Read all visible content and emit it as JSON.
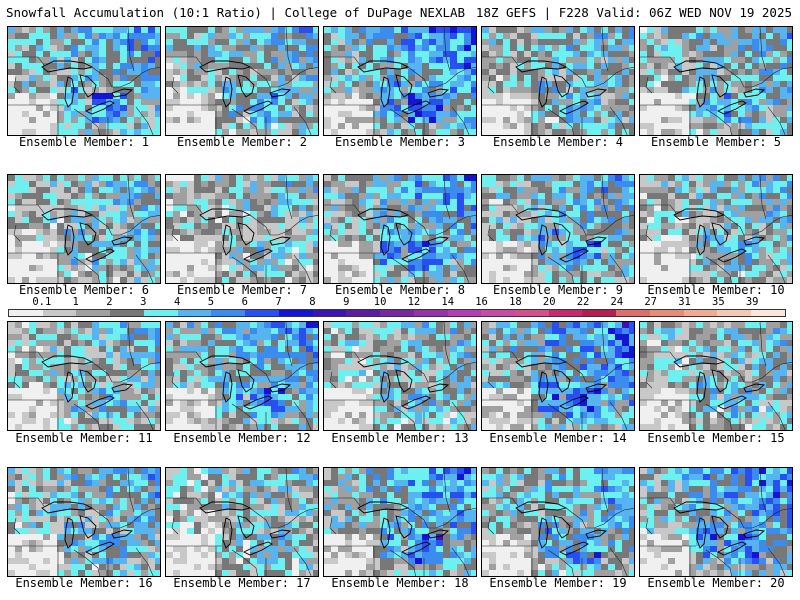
{
  "header": {
    "title_left": "Snowfall Accumulation (10:1 Ratio) | College of DuPage NEXLAB",
    "title_right": "18Z GEFS | F228 Valid: 06Z WED NOV 19 2025"
  },
  "members": [
    {
      "label": "Ensemble Member: 1",
      "intensity": 0.55,
      "seed": 11
    },
    {
      "label": "Ensemble Member: 2",
      "intensity": 0.45,
      "seed": 23
    },
    {
      "label": "Ensemble Member: 3",
      "intensity": 0.7,
      "seed": 37
    },
    {
      "label": "Ensemble Member: 4",
      "intensity": 0.4,
      "seed": 41
    },
    {
      "label": "Ensemble Member: 5",
      "intensity": 0.45,
      "seed": 53
    },
    {
      "label": "Ensemble Member: 6",
      "intensity": 0.4,
      "seed": 67
    },
    {
      "label": "Ensemble Member: 7",
      "intensity": 0.3,
      "seed": 71
    },
    {
      "label": "Ensemble Member: 8",
      "intensity": 0.6,
      "seed": 83
    },
    {
      "label": "Ensemble Member: 9",
      "intensity": 0.5,
      "seed": 97
    },
    {
      "label": "Ensemble Member: 10",
      "intensity": 0.4,
      "seed": 101
    },
    {
      "label": "Ensemble Member: 11",
      "intensity": 0.35,
      "seed": 113
    },
    {
      "label": "Ensemble Member: 12",
      "intensity": 0.6,
      "seed": 127
    },
    {
      "label": "Ensemble Member: 13",
      "intensity": 0.35,
      "seed": 131
    },
    {
      "label": "Ensemble Member: 14",
      "intensity": 0.7,
      "seed": 149
    },
    {
      "label": "Ensemble Member: 15",
      "intensity": 0.35,
      "seed": 151
    },
    {
      "label": "Ensemble Member: 16",
      "intensity": 0.45,
      "seed": 163
    },
    {
      "label": "Ensemble Member: 17",
      "intensity": 0.3,
      "seed": 173
    },
    {
      "label": "Ensemble Member: 18",
      "intensity": 0.65,
      "seed": 181
    },
    {
      "label": "Ensemble Member: 19",
      "intensity": 0.55,
      "seed": 191
    },
    {
      "label": "Ensemble Member: 20",
      "intensity": 0.65,
      "seed": 199
    }
  ],
  "colorbar": {
    "labels": [
      "0.1",
      "1",
      "2",
      "3",
      "4",
      "5",
      "6",
      "7",
      "8",
      "9",
      "10",
      "12",
      "14",
      "16",
      "18",
      "20",
      "22",
      "24",
      "27",
      "31",
      "35",
      "39"
    ],
    "colors": [
      "#f0f0f0",
      "#c8c8c8",
      "#a0a0a0",
      "#787878",
      "#6cf0f0",
      "#56b4f0",
      "#3c8cf0",
      "#2850f0",
      "#1414d2",
      "#3c14b4",
      "#5a1ea0",
      "#7828a0",
      "#9632aa",
      "#b43cb4",
      "#c84ba5",
      "#d2508c",
      "#c8286e",
      "#b41e50",
      "#dc6e6e",
      "#e68c78",
      "#f0aa96",
      "#f5c8b4",
      "#fae6dc"
    ]
  }
}
